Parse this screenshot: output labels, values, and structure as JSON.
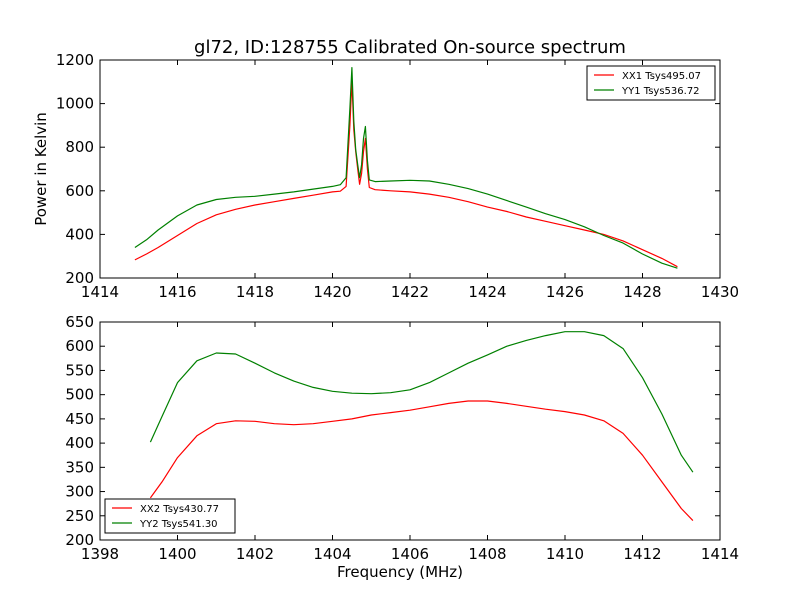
{
  "figure": {
    "title": "gl72, ID:128755 Calibrated On-source spectrum"
  },
  "colors": {
    "xx": "#ff0000",
    "yy": "#008000",
    "axes": "#000000",
    "background": "#ffffff"
  },
  "chart_data": [
    {
      "type": "line",
      "title": "gl72, ID:128755 Calibrated On-source spectrum",
      "xlabel": "",
      "ylabel": "Power in Kelvin",
      "xlim": [
        1414,
        1430
      ],
      "ylim": [
        200,
        1200
      ],
      "xticks": [
        1414,
        1416,
        1418,
        1420,
        1422,
        1424,
        1426,
        1428,
        1430
      ],
      "yticks": [
        200,
        400,
        600,
        800,
        1000,
        1200
      ],
      "grid": false,
      "legend_position": "top-right",
      "series": [
        {
          "name": "XX1 Tsys495.07",
          "color": "#ff0000",
          "x": [
            1414.9,
            1415.2,
            1415.5,
            1416.0,
            1416.5,
            1417.0,
            1417.5,
            1418.0,
            1418.5,
            1419.0,
            1419.5,
            1420.0,
            1420.2,
            1420.35,
            1420.45,
            1420.5,
            1420.55,
            1420.6,
            1420.65,
            1420.7,
            1420.75,
            1420.8,
            1420.85,
            1420.9,
            1420.95,
            1421.1,
            1421.5,
            1422.0,
            1422.5,
            1423.0,
            1423.5,
            1424.0,
            1424.5,
            1425.0,
            1425.5,
            1426.0,
            1426.5,
            1427.0,
            1427.5,
            1428.0,
            1428.5,
            1428.9
          ],
          "y": [
            283,
            310,
            340,
            395,
            450,
            490,
            515,
            535,
            550,
            565,
            580,
            595,
            598,
            620,
            900,
            1105,
            880,
            780,
            700,
            630,
            680,
            780,
            840,
            700,
            615,
            605,
            600,
            595,
            585,
            570,
            550,
            525,
            505,
            480,
            460,
            440,
            420,
            400,
            370,
            330,
            290,
            252
          ]
        },
        {
          "name": "YY1 Tsys536.72",
          "color": "#008000",
          "x": [
            1414.9,
            1415.2,
            1415.5,
            1416.0,
            1416.5,
            1417.0,
            1417.5,
            1418.0,
            1418.5,
            1419.0,
            1419.5,
            1420.0,
            1420.2,
            1420.35,
            1420.45,
            1420.5,
            1420.55,
            1420.6,
            1420.65,
            1420.7,
            1420.75,
            1420.8,
            1420.85,
            1420.9,
            1420.95,
            1421.1,
            1421.5,
            1422.0,
            1422.5,
            1423.0,
            1423.5,
            1424.0,
            1424.5,
            1425.0,
            1425.5,
            1426.0,
            1426.5,
            1427.0,
            1427.5,
            1428.0,
            1428.5,
            1428.9
          ],
          "y": [
            340,
            375,
            420,
            485,
            535,
            560,
            570,
            575,
            585,
            595,
            608,
            620,
            628,
            660,
            980,
            1165,
            920,
            790,
            720,
            660,
            720,
            840,
            895,
            740,
            650,
            642,
            645,
            648,
            645,
            630,
            610,
            585,
            555,
            525,
            495,
            468,
            435,
            395,
            360,
            310,
            268,
            245
          ]
        }
      ]
    },
    {
      "type": "line",
      "title": "",
      "xlabel": "Frequency (MHz)",
      "ylabel": "",
      "xlim": [
        1398,
        1414
      ],
      "ylim": [
        200,
        650
      ],
      "xticks": [
        1398,
        1400,
        1402,
        1404,
        1406,
        1408,
        1410,
        1412,
        1414
      ],
      "yticks": [
        200,
        250,
        300,
        350,
        400,
        450,
        500,
        550,
        600,
        650
      ],
      "grid": false,
      "legend_position": "bottom-left",
      "series": [
        {
          "name": "XX2 Tsys430.77",
          "color": "#ff0000",
          "x": [
            1399.3,
            1399.6,
            1400.0,
            1400.5,
            1401.0,
            1401.5,
            1402.0,
            1402.5,
            1403.0,
            1403.5,
            1404.0,
            1404.5,
            1405.0,
            1405.5,
            1406.0,
            1406.5,
            1407.0,
            1407.5,
            1408.0,
            1408.5,
            1409.0,
            1409.5,
            1410.0,
            1410.5,
            1411.0,
            1411.5,
            1412.0,
            1412.5,
            1413.0,
            1413.3
          ],
          "y": [
            287,
            320,
            370,
            415,
            440,
            446,
            445,
            440,
            438,
            440,
            445,
            450,
            458,
            463,
            468,
            475,
            482,
            487,
            487,
            482,
            476,
            470,
            465,
            458,
            446,
            420,
            375,
            320,
            265,
            240
          ]
        },
        {
          "name": "YY2 Tsys541.30",
          "color": "#008000",
          "x": [
            1399.3,
            1399.6,
            1400.0,
            1400.5,
            1401.0,
            1401.5,
            1402.0,
            1402.5,
            1403.0,
            1403.5,
            1404.0,
            1404.5,
            1405.0,
            1405.5,
            1406.0,
            1406.5,
            1407.0,
            1407.5,
            1408.0,
            1408.5,
            1409.0,
            1409.5,
            1410.0,
            1410.5,
            1411.0,
            1411.5,
            1412.0,
            1412.5,
            1413.0,
            1413.3
          ],
          "y": [
            402,
            455,
            525,
            570,
            586,
            584,
            565,
            545,
            528,
            515,
            507,
            503,
            502,
            504,
            510,
            525,
            545,
            565,
            582,
            600,
            612,
            622,
            630,
            630,
            622,
            595,
            535,
            460,
            375,
            340
          ]
        }
      ]
    }
  ]
}
